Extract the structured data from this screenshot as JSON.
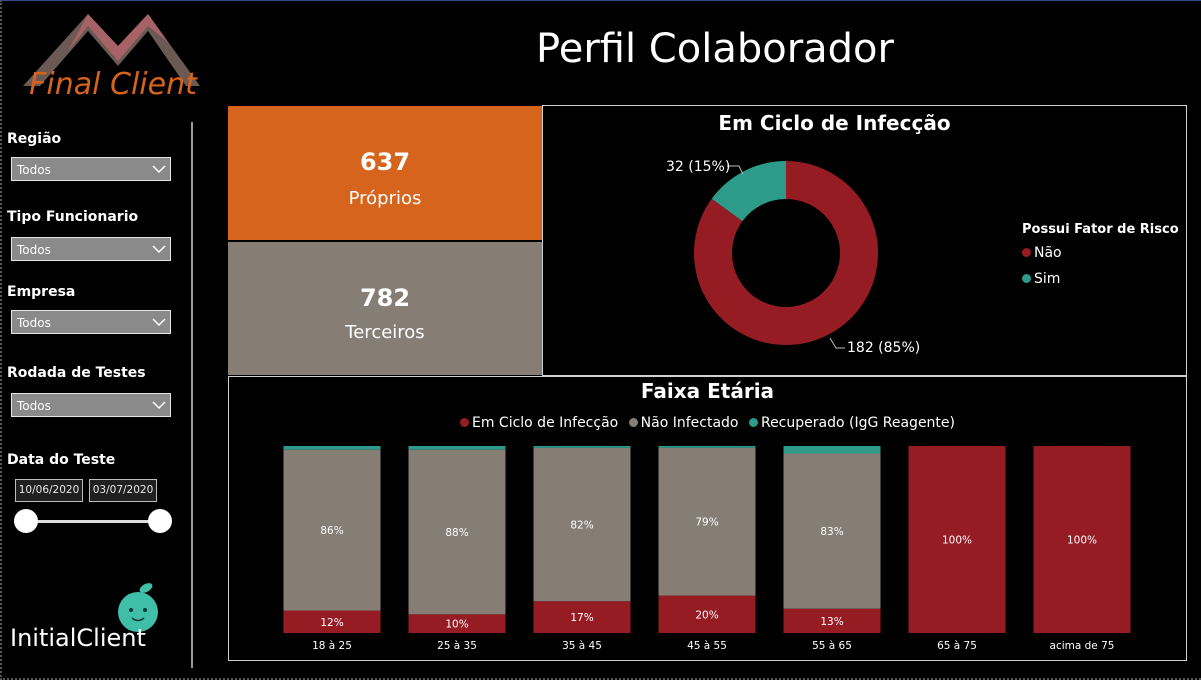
{
  "header": {
    "title": "Perfil Colaborador",
    "logo_text": "Final Client"
  },
  "sidebar": {
    "filters": [
      {
        "label": "Região",
        "value": "Todos"
      },
      {
        "label": "Tipo Funcionario",
        "value": "Todos"
      },
      {
        "label": "Empresa",
        "value": "Todos"
      },
      {
        "label": "Rodada de Testes",
        "value": "Todos"
      }
    ],
    "date": {
      "label": "Data do Teste",
      "start": "10/06/2020",
      "end": "03/07/2020"
    },
    "footer_logo": "InitialClient"
  },
  "cards": [
    {
      "value": "637",
      "label": "Próprios",
      "color": "#d6641c"
    },
    {
      "value": "782",
      "label": "Terceiros",
      "color": "#867d74"
    }
  ],
  "colors": {
    "red": "#961c24",
    "teal": "#2e9a8a",
    "gray": "#867d74"
  },
  "chart_data": [
    {
      "type": "pie",
      "variant": "donut",
      "title": "Em Ciclo de Infecção",
      "legend_title": "Possui Fator de Risco",
      "legend_position": "right",
      "slices": [
        {
          "name": "Não",
          "value": 182,
          "label": "182 (85%)",
          "color": "#961c24"
        },
        {
          "name": "Sim",
          "value": 32,
          "label": "32 (15%)",
          "color": "#2e9a8a"
        }
      ]
    },
    {
      "type": "bar",
      "variant": "stacked-100",
      "title": "Faixa Etária",
      "legend_position": "top",
      "categories": [
        "18 à 25",
        "25 à 35",
        "35 à 45",
        "45 à 55",
        "55 à 65",
        "65 à 75",
        "acima de 75"
      ],
      "series": [
        {
          "name": "Em Ciclo de Infecção",
          "color": "#961c24",
          "values": [
            12,
            10,
            17,
            20,
            13,
            100,
            100
          ],
          "labels": [
            "12%",
            "10%",
            "17%",
            "20%",
            "13%",
            "100%",
            "100%"
          ]
        },
        {
          "name": "Não Infectado",
          "color": "#867d74",
          "values": [
            86,
            88,
            82,
            79,
            83,
            0,
            0
          ],
          "labels": [
            "86%",
            "88%",
            "82%",
            "79%",
            "83%",
            "",
            ""
          ]
        },
        {
          "name": "Recuperado (IgG Reagente)",
          "color": "#2e9a8a",
          "values": [
            2,
            2,
            1,
            1,
            4,
            0,
            0
          ],
          "labels": [
            "",
            "",
            "",
            "",
            "",
            "",
            ""
          ]
        }
      ]
    }
  ]
}
